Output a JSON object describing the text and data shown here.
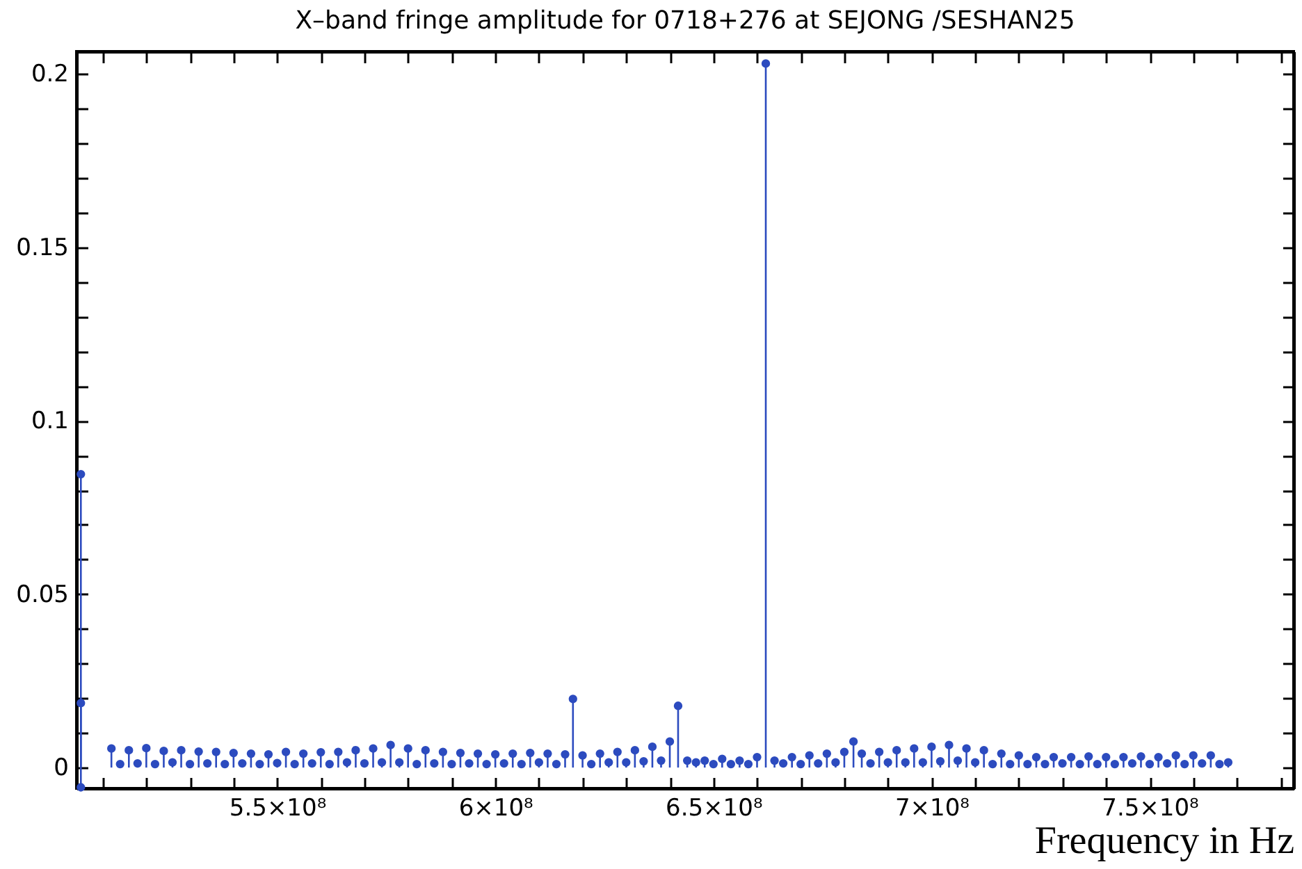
{
  "chart_data": {
    "type": "lollipop",
    "title": "X–band  fringe amplitude for 0718+276 at SEJONG  /SESHAN25",
    "xlabel": "Frequency in Hz",
    "marker": "circle",
    "grid": false,
    "xlim": [
      504000000.0,
      783000000.0
    ],
    "ylim": [
      -0.006,
      0.2065
    ],
    "xticks": [
      {
        "value": 510000000.0,
        "label": null
      },
      {
        "value": 520000000.0,
        "label": null
      },
      {
        "value": 530000000.0,
        "label": null
      },
      {
        "value": 540000000.0,
        "label": null
      },
      {
        "value": 550000000.0,
        "label": "5.5×10⁸"
      },
      {
        "value": 560000000.0,
        "label": null
      },
      {
        "value": 570000000.0,
        "label": null
      },
      {
        "value": 580000000.0,
        "label": null
      },
      {
        "value": 590000000.0,
        "label": null
      },
      {
        "value": 600000000.0,
        "label": "6×10⁸"
      },
      {
        "value": 610000000.0,
        "label": null
      },
      {
        "value": 620000000.0,
        "label": null
      },
      {
        "value": 630000000.0,
        "label": null
      },
      {
        "value": 640000000.0,
        "label": null
      },
      {
        "value": 650000000.0,
        "label": "6.5×10⁸"
      },
      {
        "value": 660000000.0,
        "label": null
      },
      {
        "value": 670000000.0,
        "label": null
      },
      {
        "value": 680000000.0,
        "label": null
      },
      {
        "value": 690000000.0,
        "label": null
      },
      {
        "value": 700000000.0,
        "label": "7×10⁸"
      },
      {
        "value": 710000000.0,
        "label": null
      },
      {
        "value": 720000000.0,
        "label": null
      },
      {
        "value": 730000000.0,
        "label": null
      },
      {
        "value": 740000000.0,
        "label": null
      },
      {
        "value": 750000000.0,
        "label": "7.5×10⁸"
      },
      {
        "value": 760000000.0,
        "label": null
      },
      {
        "value": 770000000.0,
        "label": null
      },
      {
        "value": 780000000.0,
        "label": null
      }
    ],
    "yticks": [
      0,
      {
        "value": 0.01,
        "label": null
      },
      {
        "value": 0.02,
        "label": null
      },
      {
        "value": 0.03,
        "label": null
      },
      {
        "value": 0.04,
        "label": null
      },
      0.05,
      {
        "value": 0.06,
        "label": null
      },
      {
        "value": 0.07,
        "label": null
      },
      {
        "value": 0.08,
        "label": null
      },
      {
        "value": 0.09,
        "label": null
      },
      0.1,
      {
        "value": 0.11,
        "label": null
      },
      {
        "value": 0.12,
        "label": null
      },
      {
        "value": 0.13,
        "label": null
      },
      {
        "value": 0.14,
        "label": null
      },
      0.15,
      {
        "value": 0.16,
        "label": null
      },
      {
        "value": 0.17,
        "label": null
      },
      {
        "value": 0.18,
        "label": null
      },
      {
        "value": 0.19,
        "label": null
      },
      0.2
    ],
    "series": [
      {
        "color": "#2c4bbf",
        "x": [
          505000000.0,
          505000000.0,
          505000000.0,
          512000000.0,
          514000000.0,
          516000000.0,
          518000000.0,
          520000000.0,
          522000000.0,
          524000000.0,
          526000000.0,
          528000000.0,
          530000000.0,
          532000000.0,
          534000000.0,
          536000000.0,
          538000000.0,
          540000000.0,
          542000000.0,
          544000000.0,
          546000000.0,
          548000000.0,
          550000000.0,
          552000000.0,
          554000000.0,
          556000000.0,
          558000000.0,
          560000000.0,
          562000000.0,
          564000000.0,
          566000000.0,
          568000000.0,
          570000000.0,
          572000000.0,
          574000000.0,
          576000000.0,
          578000000.0,
          580000000.0,
          582000000.0,
          584000000.0,
          586000000.0,
          588000000.0,
          590000000.0,
          592000000.0,
          594000000.0,
          596000000.0,
          598000000.0,
          600000000.0,
          602000000.0,
          604000000.0,
          606000000.0,
          608000000.0,
          610000000.0,
          612000000.0,
          614000000.0,
          616000000.0,
          617800000.0,
          620000000.0,
          622000000.0,
          624000000.0,
          626000000.0,
          628000000.0,
          630000000.0,
          632000000.0,
          634000000.0,
          636000000.0,
          638000000.0,
          640000000.0,
          641900000.0,
          644000000.0,
          646000000.0,
          648000000.0,
          650000000.0,
          652000000.0,
          654000000.0,
          656000000.0,
          658000000.0,
          660000000.0,
          662000000.0,
          664000000.0,
          666000000.0,
          668000000.0,
          670000000.0,
          672000000.0,
          674000000.0,
          676000000.0,
          678000000.0,
          680000000.0,
          682100000.0,
          684000000.0,
          686000000.0,
          688000000.0,
          690000000.0,
          692000000.0,
          694000000.0,
          696000000.0,
          698000000.0,
          700000000.0,
          702000000.0,
          704000000.0,
          706000000.0,
          708000000.0,
          710000000.0,
          712000000.0,
          714000000.0,
          716000000.0,
          718000000.0,
          720000000.0,
          722000000.0,
          724000000.0,
          726000000.0,
          728000000.0,
          730000000.0,
          732000000.0,
          734000000.0,
          736000000.0,
          738000000.0,
          740000000.0,
          742000000.0,
          744000000.0,
          746000000.0,
          748000000.0,
          750000000.0,
          752000000.0,
          754000000.0,
          756000000.0,
          758000000.0,
          760000000.0,
          762000000.0,
          764000000.0,
          766000000.0,
          768000000.0
        ],
        "values": [
          0.0846,
          -0.0057,
          0.0186,
          0.0055,
          0.001,
          0.005,
          0.0012,
          0.0056,
          0.001,
          0.0048,
          0.0015,
          0.005,
          0.001,
          0.0046,
          0.0012,
          0.0045,
          0.001,
          0.0042,
          0.0012,
          0.004,
          0.001,
          0.0038,
          0.0013,
          0.0045,
          0.001,
          0.004,
          0.0012,
          0.0044,
          0.001,
          0.0045,
          0.0015,
          0.005,
          0.0012,
          0.0055,
          0.0015,
          0.0065,
          0.0015,
          0.0055,
          0.001,
          0.005,
          0.0012,
          0.0045,
          0.001,
          0.0042,
          0.0012,
          0.004,
          0.001,
          0.0038,
          0.0012,
          0.004,
          0.001,
          0.0042,
          0.0015,
          0.004,
          0.001,
          0.0038,
          0.0198,
          0.0035,
          0.001,
          0.004,
          0.0015,
          0.0045,
          0.0015,
          0.005,
          0.0018,
          0.006,
          0.002,
          0.0075,
          0.0178,
          0.002,
          0.0015,
          0.002,
          0.001,
          0.0025,
          0.001,
          0.002,
          0.001,
          0.003,
          0.203,
          0.002,
          0.0012,
          0.003,
          0.001,
          0.0035,
          0.0012,
          0.004,
          0.0015,
          0.0045,
          0.0075,
          0.004,
          0.0012,
          0.0045,
          0.0015,
          0.005,
          0.0015,
          0.0055,
          0.0015,
          0.006,
          0.0018,
          0.0065,
          0.002,
          0.0055,
          0.0015,
          0.005,
          0.001,
          0.004,
          0.001,
          0.0035,
          0.001,
          0.003,
          0.001,
          0.003,
          0.0012,
          0.003,
          0.001,
          0.0032,
          0.001,
          0.003,
          0.001,
          0.003,
          0.0012,
          0.0032,
          0.001,
          0.003,
          0.0012,
          0.0035,
          0.001,
          0.0035,
          0.0012,
          0.0035,
          0.001,
          0.0015
        ]
      }
    ]
  }
}
